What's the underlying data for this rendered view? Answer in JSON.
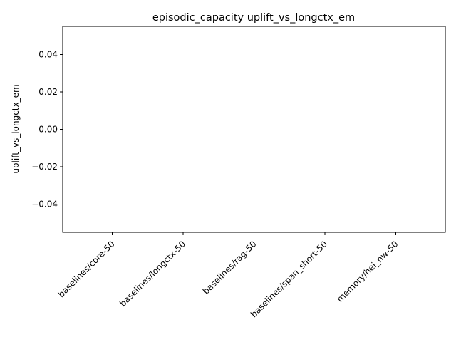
{
  "chart_data": {
    "type": "bar",
    "title": "episodic_capacity uplift_vs_longctx_em",
    "xlabel": "",
    "ylabel": "uplift_vs_longctx_em",
    "categories": [
      "baselines/core-50",
      "baselines/longctx-50",
      "baselines/rag-50",
      "baselines/span_short-50",
      "memory/hei_nw-50"
    ],
    "values": [
      0,
      0,
      0,
      0,
      0
    ],
    "ylim": [
      -0.055,
      0.055
    ],
    "yticks": [
      -0.04,
      -0.02,
      0.0,
      0.02,
      0.04
    ],
    "ytick_labels": [
      "−0.04",
      "−0.02",
      "0.00",
      "0.02",
      "0.04"
    ],
    "grid": false,
    "legend": "none"
  }
}
